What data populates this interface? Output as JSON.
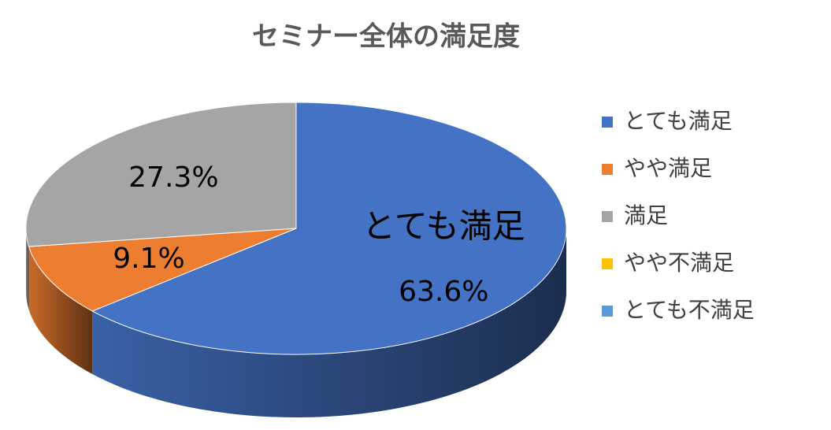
{
  "chart_data": {
    "type": "pie3d",
    "title": "セミナー全体の満足度",
    "categories": [
      "とても満足",
      "やや満足",
      "満足",
      "やや不満足",
      "とても不満足"
    ],
    "values": [
      63.6,
      9.1,
      27.3,
      0,
      0
    ],
    "value_labels": [
      "63.6%",
      "9.1%",
      "27.3%",
      null,
      null
    ],
    "colors": [
      "#4472c4",
      "#ed7d31",
      "#a5a5a5",
      "#ffc000",
      "#5b9bd5"
    ],
    "legend": "right"
  }
}
